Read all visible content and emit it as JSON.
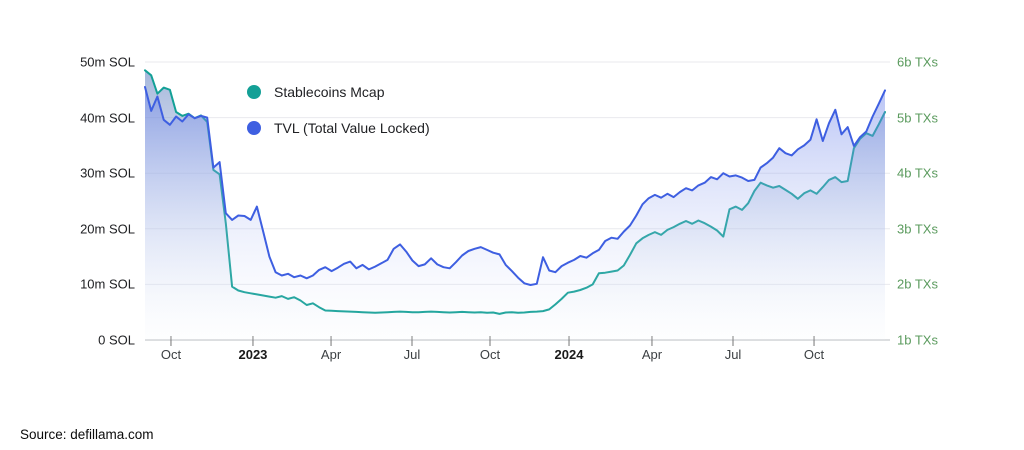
{
  "source_note": "Source: defillama.com",
  "chart_data": {
    "type": "area",
    "title": "",
    "grid": true,
    "legend_position": "top-left-inside",
    "x_axis": {
      "ticks": [
        {
          "label": "Oct",
          "pos": 0.0351,
          "bold": false
        },
        {
          "label": "2023",
          "pos": 0.1459,
          "bold": true
        },
        {
          "label": "Apr",
          "pos": 0.2514,
          "bold": false
        },
        {
          "label": "Jul",
          "pos": 0.3608,
          "bold": false
        },
        {
          "label": "Oct",
          "pos": 0.4662,
          "bold": false
        },
        {
          "label": "2024",
          "pos": 0.573,
          "bold": true
        },
        {
          "label": "Apr",
          "pos": 0.6851,
          "bold": false
        },
        {
          "label": "Jul",
          "pos": 0.7946,
          "bold": false
        },
        {
          "label": "Oct",
          "pos": 0.9041,
          "bold": false
        }
      ]
    },
    "y_axis_left": {
      "unit": "m SOL",
      "range": [
        0,
        50
      ],
      "ticks": [
        {
          "label": "0 SOL",
          "value": 0
        },
        {
          "label": "10m SOL",
          "value": 10
        },
        {
          "label": "20m SOL",
          "value": 20
        },
        {
          "label": "30m SOL",
          "value": 30
        },
        {
          "label": "40m SOL",
          "value": 40
        },
        {
          "label": "50m SOL",
          "value": 50
        }
      ]
    },
    "y_axis_right": {
      "unit": "b TXs",
      "range": [
        1,
        6
      ],
      "color": "#5b9b5e",
      "ticks": [
        {
          "label": "1b TXs",
          "value": 1
        },
        {
          "label": "2b TXs",
          "value": 2
        },
        {
          "label": "3b TXs",
          "value": 3
        },
        {
          "label": "4b TXs",
          "value": 4
        },
        {
          "label": "5b TXs",
          "value": 5
        },
        {
          "label": "6b TXs",
          "value": 6
        }
      ]
    },
    "series": [
      {
        "name": "Stablecoins Mcap",
        "color": "#13a096",
        "fill_top": "rgba(96,128,192,0.60)",
        "fill_bottom": "rgba(240,245,250,0.05)",
        "unit": "m SOL",
        "values": [
          48.5,
          47.6,
          44.3,
          45.4,
          45.0,
          41.0,
          40.3,
          40.7,
          39.9,
          40.4,
          39.2,
          30.6,
          29.8,
          21.0,
          9.6,
          8.9,
          8.6,
          8.4,
          8.2,
          8.0,
          7.8,
          7.6,
          7.9,
          7.4,
          7.7,
          7.1,
          6.3,
          6.6,
          5.9,
          5.3,
          5.25,
          5.2,
          5.15,
          5.1,
          5.05,
          5.0,
          4.95,
          4.9,
          4.95,
          5.0,
          5.05,
          5.1,
          5.05,
          5.0,
          5.0,
          5.05,
          5.1,
          5.05,
          5.0,
          4.95,
          5.0,
          5.05,
          5.0,
          4.95,
          5.0,
          4.9,
          4.95,
          4.7,
          4.95,
          5.0,
          4.9,
          4.95,
          5.05,
          5.1,
          5.2,
          5.5,
          6.4,
          7.4,
          8.5,
          8.7,
          9.0,
          9.4,
          10.0,
          12.0,
          12.1,
          12.3,
          12.5,
          13.4,
          15.3,
          17.4,
          18.3,
          18.9,
          19.4,
          18.9,
          19.8,
          20.3,
          20.9,
          21.4,
          20.9,
          21.5,
          21.0,
          20.4,
          19.7,
          18.6,
          23.5,
          24.0,
          23.4,
          24.6,
          26.8,
          28.3,
          27.8,
          27.4,
          27.7,
          27.0,
          26.3,
          25.4,
          26.4,
          26.9,
          26.3,
          27.5,
          28.8,
          29.3,
          28.4,
          28.6,
          34.5,
          36.2,
          37.2,
          36.7,
          38.8,
          41.0
        ]
      },
      {
        "name": "TVL (Total Value Locked)",
        "color": "#3e5fe1",
        "fill_top": "rgba(88,114,230,0.50)",
        "fill_bottom": "rgba(235,240,252,0.04)",
        "unit": "m SOL",
        "values": [
          45.5,
          41.2,
          43.8,
          39.6,
          38.7,
          40.2,
          39.3,
          40.6,
          39.9,
          40.3,
          40.0,
          31.0,
          32.0,
          22.8,
          21.6,
          22.4,
          22.3,
          21.6,
          24.0,
          19.5,
          15.0,
          12.2,
          11.6,
          11.9,
          11.3,
          11.6,
          11.1,
          11.6,
          12.6,
          13.1,
          12.4,
          13.0,
          13.7,
          14.1,
          12.9,
          13.5,
          12.7,
          13.2,
          13.8,
          14.4,
          16.4,
          17.2,
          15.9,
          14.3,
          13.3,
          13.6,
          14.7,
          13.6,
          13.1,
          12.9,
          14.0,
          15.2,
          16.0,
          16.4,
          16.7,
          16.2,
          15.7,
          15.4,
          13.5,
          12.4,
          11.2,
          10.2,
          9.9,
          10.1,
          14.9,
          12.5,
          12.2,
          13.3,
          13.9,
          14.4,
          15.1,
          14.8,
          15.6,
          16.2,
          17.8,
          18.4,
          18.2,
          19.5,
          20.6,
          22.4,
          24.4,
          25.5,
          26.1,
          25.6,
          26.3,
          25.7,
          26.6,
          27.3,
          26.9,
          27.8,
          28.3,
          29.3,
          28.9,
          30.0,
          29.4,
          29.6,
          29.2,
          28.6,
          28.8,
          31.0,
          31.8,
          32.8,
          34.5,
          33.6,
          33.2,
          34.3,
          35.0,
          36.0,
          39.7,
          35.8,
          39.0,
          41.4,
          37.0,
          38.3,
          34.9,
          36.5,
          37.5,
          40.2,
          42.5,
          44.9
        ]
      }
    ]
  }
}
